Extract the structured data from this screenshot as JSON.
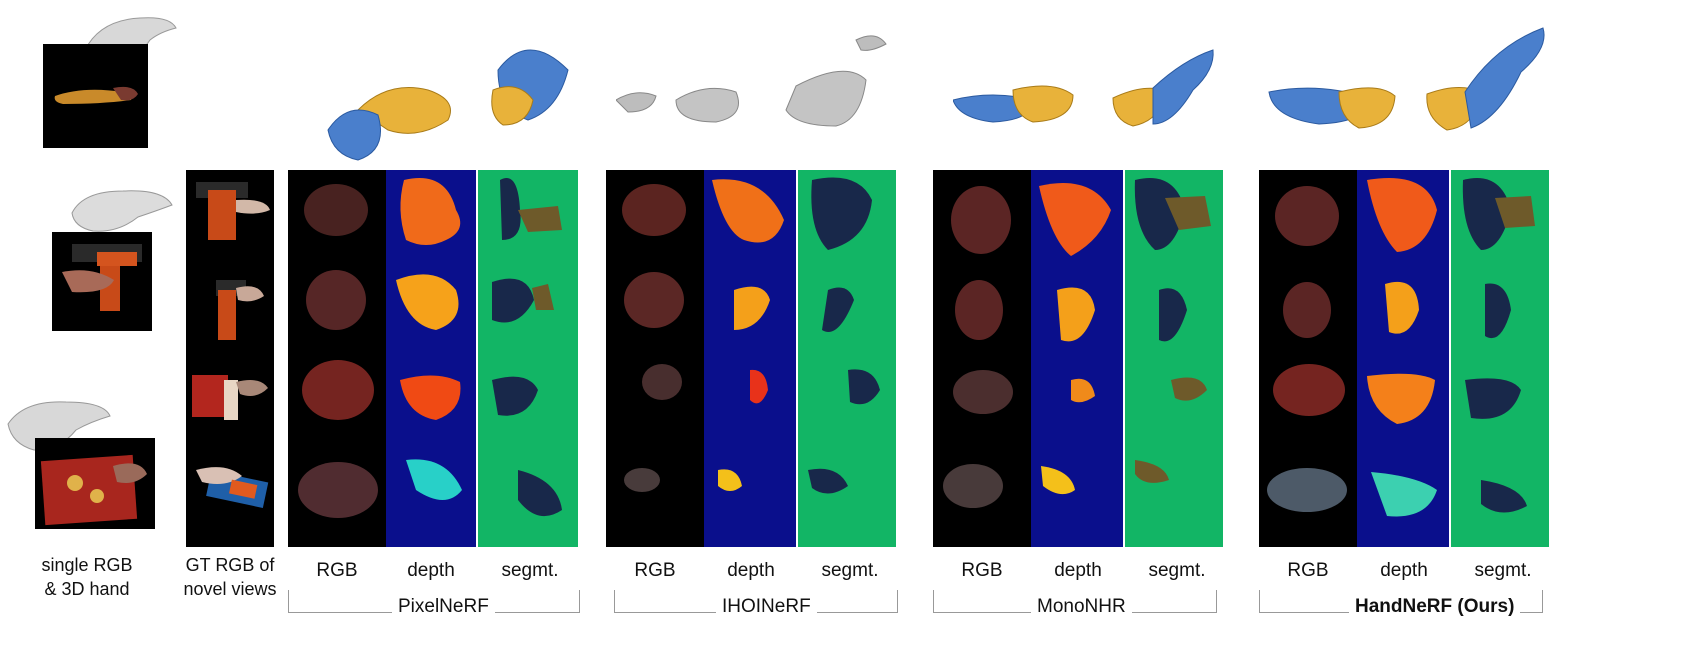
{
  "labels": {
    "input_line1": "single RGB",
    "input_line2": "& 3D hand",
    "gt_line1": "GT RGB of",
    "gt_line2": "novel views",
    "rgb": "RGB",
    "depth": "depth",
    "segmt": "segmt."
  },
  "methods": [
    {
      "name": "PixelNeRF",
      "bold": false
    },
    {
      "name": "IHOINeRF",
      "bold": false
    },
    {
      "name": "MonoNHR",
      "bold": false
    },
    {
      "name": "HandNeRF (Ours)",
      "bold": true
    }
  ],
  "colors": {
    "rgb_bg": "#000000",
    "depth_bg": "#0a0f8c",
    "seg_bg": "#12b565",
    "hand_mesh": "#4a7fcc",
    "object_mesh": "#e8b23a",
    "gray_mesh": "#bdbdbd",
    "seg_object": "#18284a",
    "seg_hand": "#6e5a2a"
  }
}
